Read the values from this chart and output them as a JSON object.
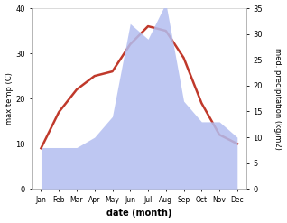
{
  "months": [
    "Jan",
    "Feb",
    "Mar",
    "Apr",
    "May",
    "Jun",
    "Jul",
    "Aug",
    "Sep",
    "Oct",
    "Nov",
    "Dec"
  ],
  "temperature": [
    9,
    17,
    22,
    25,
    26,
    32,
    36,
    35,
    29,
    19,
    12,
    10
  ],
  "precipitation": [
    8,
    8,
    8,
    10,
    14,
    32,
    29,
    36,
    17,
    13,
    13,
    10
  ],
  "temp_color": "#c0392b",
  "precip_color": "#b3bef0",
  "temp_ylim": [
    0,
    40
  ],
  "precip_ylim": [
    0,
    35
  ],
  "temp_yticks": [
    0,
    10,
    20,
    30,
    40
  ],
  "precip_yticks": [
    0,
    5,
    10,
    15,
    20,
    25,
    30,
    35
  ],
  "xlabel": "date (month)",
  "ylabel_left": "max temp (C)",
  "ylabel_right": "med. precipitation (kg/m2)",
  "background_color": "#ffffff"
}
